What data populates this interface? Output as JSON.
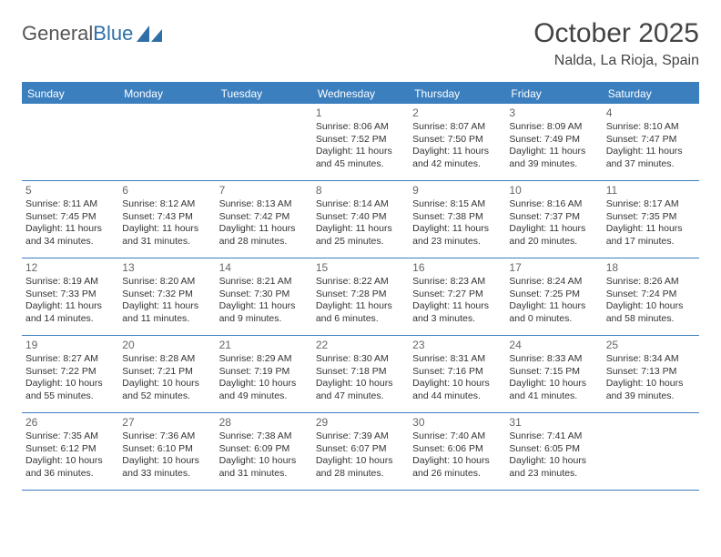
{
  "logo": {
    "part1": "General",
    "part2": "Blue"
  },
  "title": "October 2025",
  "location": "Nalda, La Rioja, Spain",
  "header_color": "#3b7fbf",
  "text_color": "#333333",
  "weekdays": [
    "Sunday",
    "Monday",
    "Tuesday",
    "Wednesday",
    "Thursday",
    "Friday",
    "Saturday"
  ],
  "weeks": [
    [
      null,
      null,
      null,
      {
        "n": "1",
        "sr": "8:06 AM",
        "ss": "7:52 PM",
        "dl": "11 hours and 45 minutes."
      },
      {
        "n": "2",
        "sr": "8:07 AM",
        "ss": "7:50 PM",
        "dl": "11 hours and 42 minutes."
      },
      {
        "n": "3",
        "sr": "8:09 AM",
        "ss": "7:49 PM",
        "dl": "11 hours and 39 minutes."
      },
      {
        "n": "4",
        "sr": "8:10 AM",
        "ss": "7:47 PM",
        "dl": "11 hours and 37 minutes."
      }
    ],
    [
      {
        "n": "5",
        "sr": "8:11 AM",
        "ss": "7:45 PM",
        "dl": "11 hours and 34 minutes."
      },
      {
        "n": "6",
        "sr": "8:12 AM",
        "ss": "7:43 PM",
        "dl": "11 hours and 31 minutes."
      },
      {
        "n": "7",
        "sr": "8:13 AM",
        "ss": "7:42 PM",
        "dl": "11 hours and 28 minutes."
      },
      {
        "n": "8",
        "sr": "8:14 AM",
        "ss": "7:40 PM",
        "dl": "11 hours and 25 minutes."
      },
      {
        "n": "9",
        "sr": "8:15 AM",
        "ss": "7:38 PM",
        "dl": "11 hours and 23 minutes."
      },
      {
        "n": "10",
        "sr": "8:16 AM",
        "ss": "7:37 PM",
        "dl": "11 hours and 20 minutes."
      },
      {
        "n": "11",
        "sr": "8:17 AM",
        "ss": "7:35 PM",
        "dl": "11 hours and 17 minutes."
      }
    ],
    [
      {
        "n": "12",
        "sr": "8:19 AM",
        "ss": "7:33 PM",
        "dl": "11 hours and 14 minutes."
      },
      {
        "n": "13",
        "sr": "8:20 AM",
        "ss": "7:32 PM",
        "dl": "11 hours and 11 minutes."
      },
      {
        "n": "14",
        "sr": "8:21 AM",
        "ss": "7:30 PM",
        "dl": "11 hours and 9 minutes."
      },
      {
        "n": "15",
        "sr": "8:22 AM",
        "ss": "7:28 PM",
        "dl": "11 hours and 6 minutes."
      },
      {
        "n": "16",
        "sr": "8:23 AM",
        "ss": "7:27 PM",
        "dl": "11 hours and 3 minutes."
      },
      {
        "n": "17",
        "sr": "8:24 AM",
        "ss": "7:25 PM",
        "dl": "11 hours and 0 minutes."
      },
      {
        "n": "18",
        "sr": "8:26 AM",
        "ss": "7:24 PM",
        "dl": "10 hours and 58 minutes."
      }
    ],
    [
      {
        "n": "19",
        "sr": "8:27 AM",
        "ss": "7:22 PM",
        "dl": "10 hours and 55 minutes."
      },
      {
        "n": "20",
        "sr": "8:28 AM",
        "ss": "7:21 PM",
        "dl": "10 hours and 52 minutes."
      },
      {
        "n": "21",
        "sr": "8:29 AM",
        "ss": "7:19 PM",
        "dl": "10 hours and 49 minutes."
      },
      {
        "n": "22",
        "sr": "8:30 AM",
        "ss": "7:18 PM",
        "dl": "10 hours and 47 minutes."
      },
      {
        "n": "23",
        "sr": "8:31 AM",
        "ss": "7:16 PM",
        "dl": "10 hours and 44 minutes."
      },
      {
        "n": "24",
        "sr": "8:33 AM",
        "ss": "7:15 PM",
        "dl": "10 hours and 41 minutes."
      },
      {
        "n": "25",
        "sr": "8:34 AM",
        "ss": "7:13 PM",
        "dl": "10 hours and 39 minutes."
      }
    ],
    [
      {
        "n": "26",
        "sr": "7:35 AM",
        "ss": "6:12 PM",
        "dl": "10 hours and 36 minutes."
      },
      {
        "n": "27",
        "sr": "7:36 AM",
        "ss": "6:10 PM",
        "dl": "10 hours and 33 minutes."
      },
      {
        "n": "28",
        "sr": "7:38 AM",
        "ss": "6:09 PM",
        "dl": "10 hours and 31 minutes."
      },
      {
        "n": "29",
        "sr": "7:39 AM",
        "ss": "6:07 PM",
        "dl": "10 hours and 28 minutes."
      },
      {
        "n": "30",
        "sr": "7:40 AM",
        "ss": "6:06 PM",
        "dl": "10 hours and 26 minutes."
      },
      {
        "n": "31",
        "sr": "7:41 AM",
        "ss": "6:05 PM",
        "dl": "10 hours and 23 minutes."
      },
      null
    ]
  ],
  "labels": {
    "sunrise": "Sunrise:",
    "sunset": "Sunset:",
    "daylight": "Daylight:"
  }
}
